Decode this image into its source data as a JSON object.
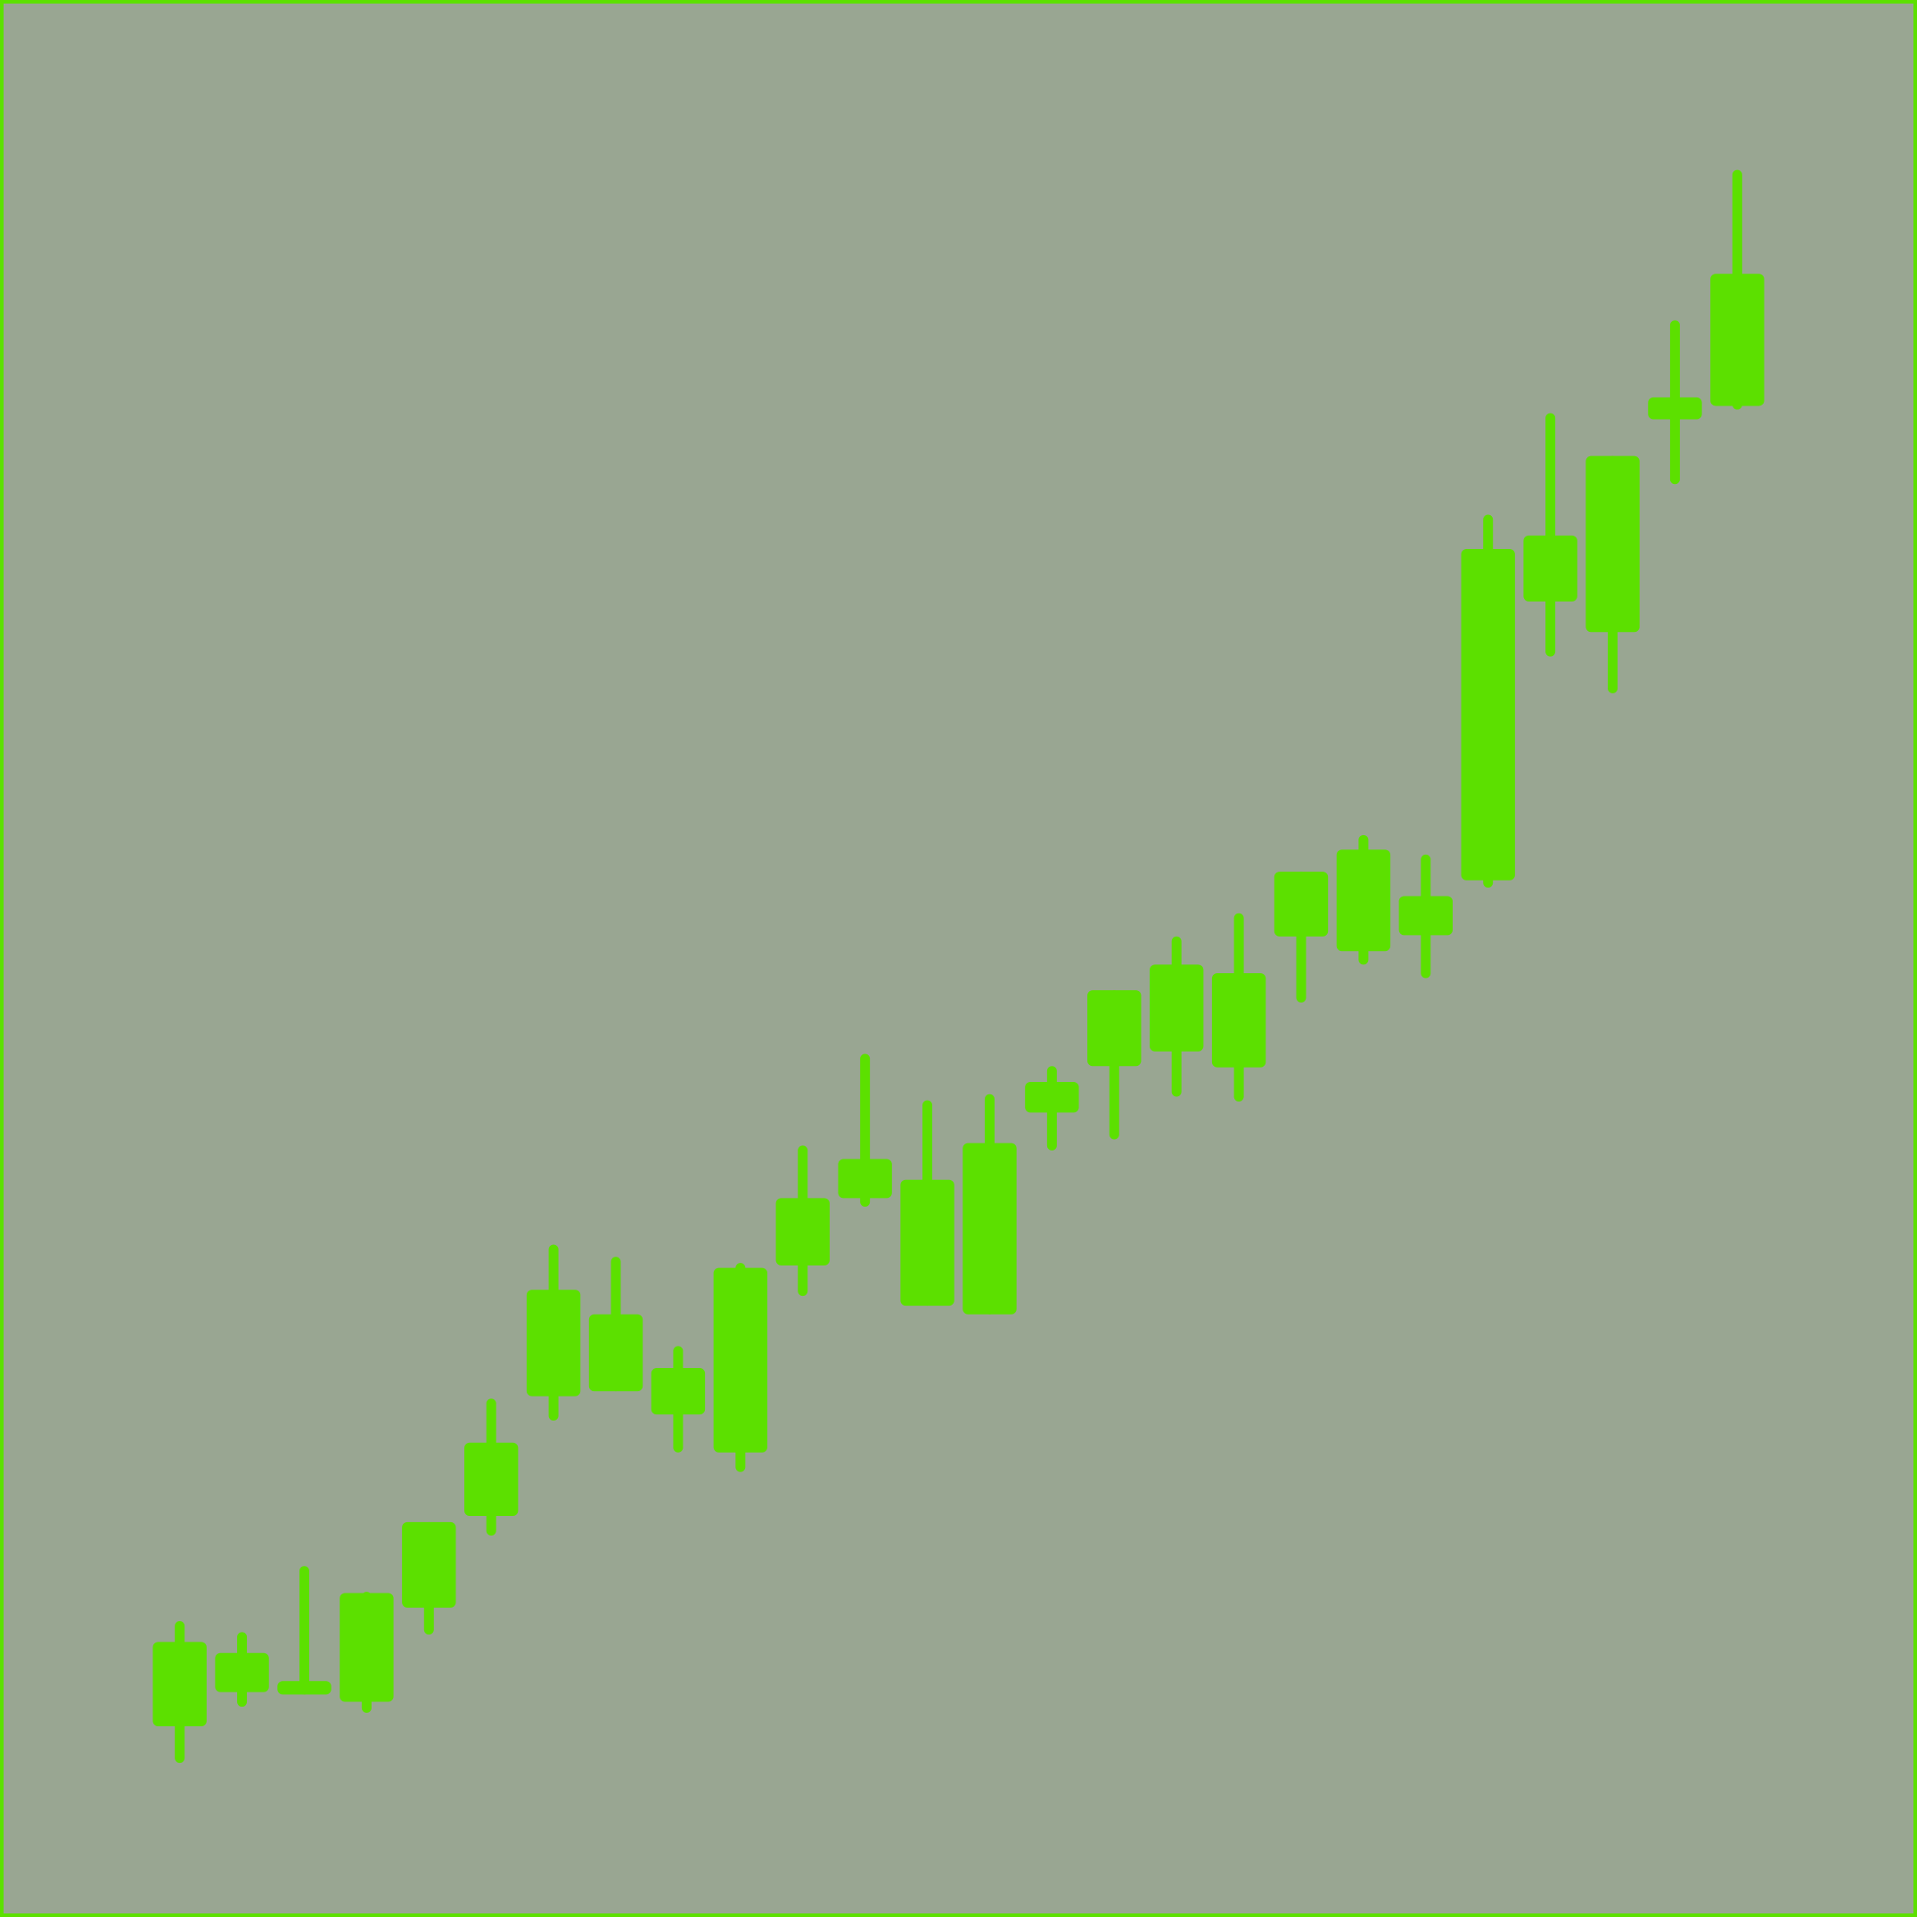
{
  "chart_data": {
    "type": "candlestick",
    "color": "#5ce000",
    "background": "#99a692",
    "open": [
      156,
      184,
      182,
      176,
      253,
      328,
      426,
      430,
      411,
      380,
      533,
      588,
      500,
      493,
      658,
      696,
      708,
      695,
      802,
      790,
      803,
      848,
      1076,
      1051,
      1225,
      1236
    ],
    "high": [
      242,
      233,
      287,
      266,
      323,
      424,
      550,
      540,
      467,
      535,
      631,
      706,
      668,
      673,
      696,
      758,
      802,
      821,
      855,
      885,
      869,
      1147,
      1230,
      1195,
      1306,
      1429
    ],
    "low": [
      126,
      172,
      182,
      167,
      231,
      312,
      406,
      430,
      380,
      364,
      508,
      581,
      500,
      493,
      627,
      636,
      671,
      667,
      748,
      779,
      768,
      842,
      1031,
      1001,
      1172,
      1233
    ],
    "close": [
      225,
      216,
      193,
      265,
      323,
      388,
      513,
      493,
      449,
      531,
      588,
      620,
      603,
      633,
      683,
      758,
      779,
      772,
      855,
      873,
      835,
      1119,
      1130,
      1195,
      1243,
      1344
    ],
    "ylim": [
      0,
      1568
    ]
  }
}
